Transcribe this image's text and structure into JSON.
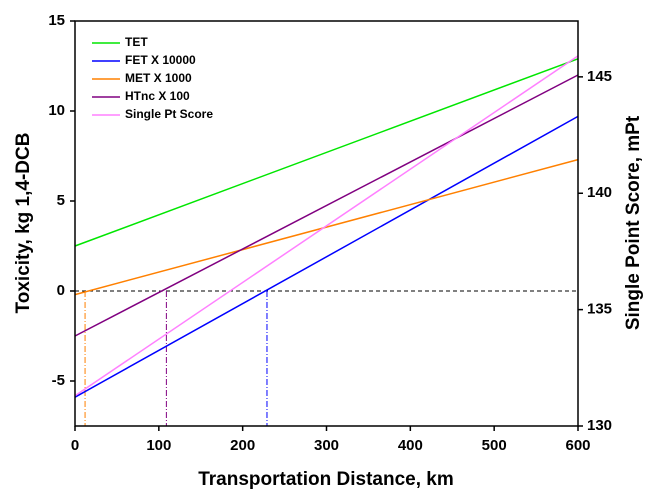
{
  "chart_data": {
    "type": "line",
    "xlabel": "Transportation Distance, km",
    "ylabel": "Toxicity, kg 1,4-DCB",
    "y2label": "Single Point Score, mPt",
    "x": [
      0,
      600
    ],
    "xlim": [
      0,
      600
    ],
    "xticks": [
      0,
      100,
      200,
      300,
      400,
      500,
      600
    ],
    "ylim": [
      -7.5,
      15
    ],
    "yticks": [
      -5,
      0,
      5,
      10,
      15
    ],
    "y2lim": [
      130,
      147.4
    ],
    "y2ticks": [
      130,
      135,
      140,
      145
    ],
    "legend": "upper left",
    "series": [
      {
        "name": "TET",
        "color": "#00e600",
        "values": [
          2.5,
          12.9
        ]
      },
      {
        "name": "FET X 10000",
        "color": "#0000ff",
        "values": [
          -5.9,
          9.7
        ]
      },
      {
        "name": "MET X 1000",
        "color": "#ff8000",
        "values": [
          -0.2,
          7.3
        ]
      },
      {
        "name": "HTnc X 100",
        "color": "#800080",
        "values": [
          -2.5,
          12.0
        ]
      },
      {
        "name": "Single Pt Score",
        "color": "#ff80ff",
        "values": [
          131.3,
          145.9
        ],
        "axis": "y2"
      }
    ],
    "hline": 0,
    "vlines": [
      {
        "x": 12,
        "color": "#ff8000"
      },
      {
        "x": 109,
        "color": "#800080"
      },
      {
        "x": 229,
        "color": "#0000ff"
      }
    ]
  }
}
